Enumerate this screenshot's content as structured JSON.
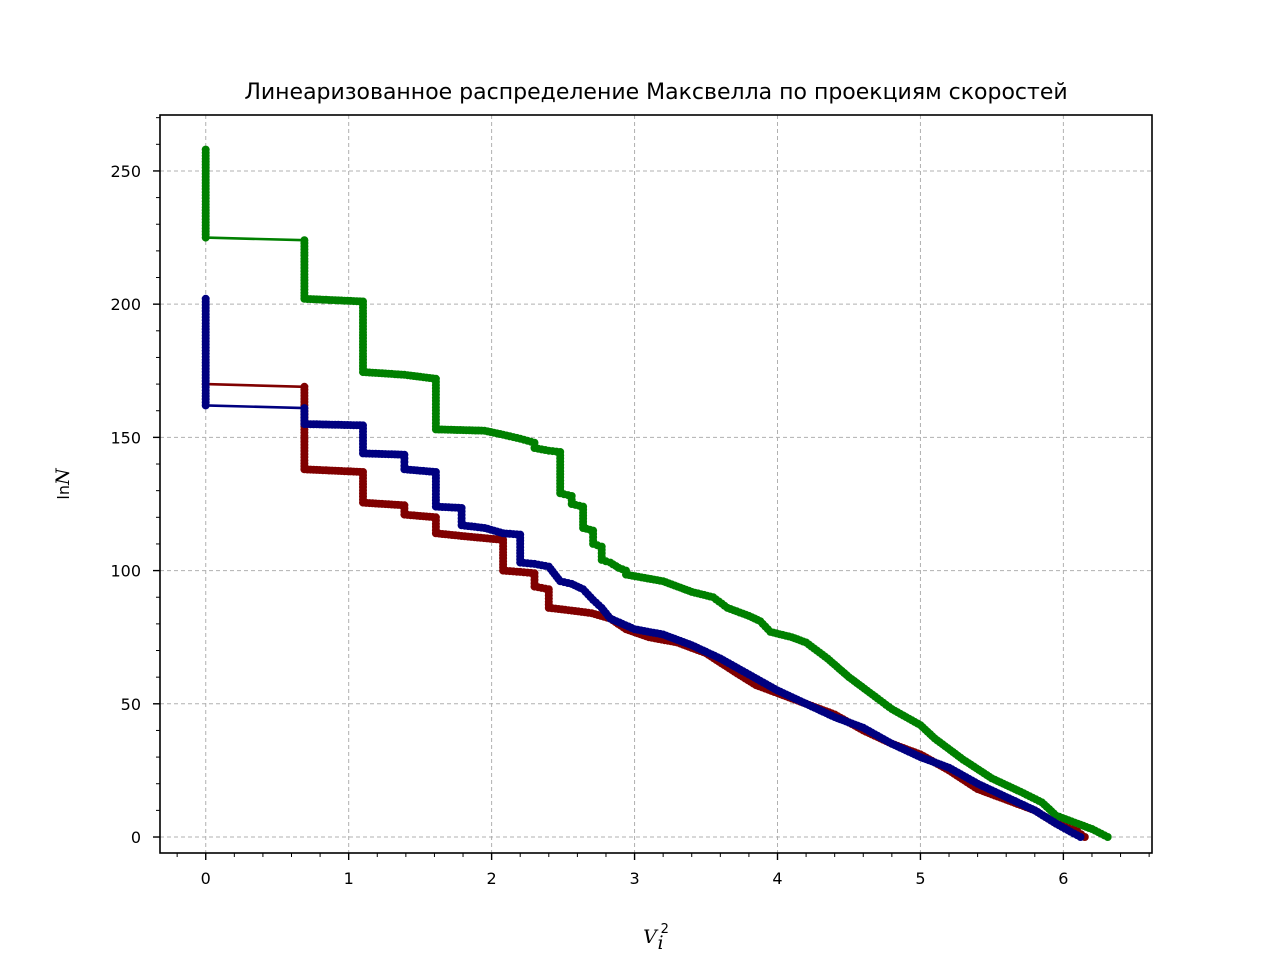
{
  "chart_data": {
    "type": "line",
    "title": "Линеаризованное распределение Максвелла по проекциям скоростей",
    "xlabel": {
      "base": "V",
      "sub": "i",
      "sup": "2"
    },
    "ylabel": {
      "prefix": "ln",
      "var": "N"
    },
    "xlim": [
      -0.32,
      6.62
    ],
    "ylim": [
      -6,
      271
    ],
    "x_ticks": [
      0,
      1,
      2,
      3,
      4,
      5,
      6
    ],
    "y_ticks": [
      0,
      50,
      100,
      150,
      200,
      250
    ],
    "grid": true,
    "legend": "none",
    "series": [
      {
        "color": "#008000",
        "points": [
          [
            0,
            258
          ],
          [
            0,
            225
          ],
          [
            0.69,
            224
          ],
          [
            0.69,
            202
          ],
          [
            1.1,
            201
          ],
          [
            1.1,
            174.5
          ],
          [
            1.39,
            173.5
          ],
          [
            1.61,
            172
          ],
          [
            1.61,
            153
          ],
          [
            1.95,
            152.5
          ],
          [
            2.08,
            151
          ],
          [
            2.2,
            149.5
          ],
          [
            2.3,
            148
          ],
          [
            2.3,
            146
          ],
          [
            2.4,
            145
          ],
          [
            2.48,
            144.5
          ],
          [
            2.48,
            129
          ],
          [
            2.56,
            128
          ],
          [
            2.56,
            125
          ],
          [
            2.64,
            124
          ],
          [
            2.64,
            116
          ],
          [
            2.71,
            115
          ],
          [
            2.71,
            110
          ],
          [
            2.77,
            109
          ],
          [
            2.77,
            104
          ],
          [
            2.83,
            103
          ],
          [
            2.89,
            101
          ],
          [
            2.94,
            100
          ],
          [
            2.94,
            98.5
          ],
          [
            3.2,
            96
          ],
          [
            3.3,
            94
          ],
          [
            3.4,
            92
          ],
          [
            3.55,
            90
          ],
          [
            3.65,
            86
          ],
          [
            3.8,
            83
          ],
          [
            3.88,
            81
          ],
          [
            3.95,
            77
          ],
          [
            4.1,
            75
          ],
          [
            4.2,
            73
          ],
          [
            4.35,
            67
          ],
          [
            4.5,
            60
          ],
          [
            4.7,
            52
          ],
          [
            4.8,
            48
          ],
          [
            5.0,
            42
          ],
          [
            5.1,
            37
          ],
          [
            5.3,
            29
          ],
          [
            5.5,
            22
          ],
          [
            5.7,
            17
          ],
          [
            5.85,
            13
          ],
          [
            5.95,
            8
          ],
          [
            6.1,
            5
          ],
          [
            6.2,
            3
          ],
          [
            6.31,
            0
          ]
        ]
      },
      {
        "color": "#800000",
        "points": [
          [
            0,
            170
          ],
          [
            0.69,
            169
          ],
          [
            0.69,
            138
          ],
          [
            1.1,
            137
          ],
          [
            1.1,
            125.5
          ],
          [
            1.39,
            124.5
          ],
          [
            1.39,
            121
          ],
          [
            1.61,
            120
          ],
          [
            1.61,
            114
          ],
          [
            1.79,
            113
          ],
          [
            2.08,
            111.5
          ],
          [
            2.08,
            100
          ],
          [
            2.2,
            99.5
          ],
          [
            2.3,
            99
          ],
          [
            2.3,
            94
          ],
          [
            2.4,
            93
          ],
          [
            2.4,
            86
          ],
          [
            2.56,
            85
          ],
          [
            2.7,
            84
          ],
          [
            2.83,
            82
          ],
          [
            2.94,
            78
          ],
          [
            3.1,
            75
          ],
          [
            3.3,
            73
          ],
          [
            3.5,
            69
          ],
          [
            3.7,
            62
          ],
          [
            3.85,
            57
          ],
          [
            4.0,
            54
          ],
          [
            4.2,
            50
          ],
          [
            4.4,
            46
          ],
          [
            4.6,
            40
          ],
          [
            4.8,
            35
          ],
          [
            5.0,
            31
          ],
          [
            5.2,
            25
          ],
          [
            5.4,
            18
          ],
          [
            5.6,
            14
          ],
          [
            5.8,
            10
          ],
          [
            5.95,
            5
          ],
          [
            6.1,
            2
          ],
          [
            6.15,
            0
          ]
        ]
      },
      {
        "color": "#000080",
        "points": [
          [
            0,
            202
          ],
          [
            0,
            162
          ],
          [
            0.69,
            161
          ],
          [
            0.69,
            155
          ],
          [
            1.1,
            154.5
          ],
          [
            1.1,
            144
          ],
          [
            1.39,
            143.5
          ],
          [
            1.39,
            138
          ],
          [
            1.61,
            137
          ],
          [
            1.61,
            124
          ],
          [
            1.79,
            123.5
          ],
          [
            1.79,
            117
          ],
          [
            1.95,
            116
          ],
          [
            2.08,
            114
          ],
          [
            2.2,
            113.5
          ],
          [
            2.2,
            103
          ],
          [
            2.3,
            102.5
          ],
          [
            2.4,
            101.5
          ],
          [
            2.48,
            96
          ],
          [
            2.56,
            95
          ],
          [
            2.64,
            93
          ],
          [
            2.71,
            89
          ],
          [
            2.77,
            86
          ],
          [
            2.83,
            82
          ],
          [
            3.0,
            78
          ],
          [
            3.2,
            76
          ],
          [
            3.4,
            72
          ],
          [
            3.6,
            67
          ],
          [
            3.8,
            61
          ],
          [
            4.0,
            55
          ],
          [
            4.2,
            50
          ],
          [
            4.4,
            45
          ],
          [
            4.6,
            41
          ],
          [
            4.8,
            35
          ],
          [
            5.0,
            30
          ],
          [
            5.2,
            26
          ],
          [
            5.4,
            20
          ],
          [
            5.6,
            15
          ],
          [
            5.8,
            10
          ],
          [
            5.95,
            5
          ],
          [
            6.05,
            2
          ],
          [
            6.12,
            0
          ]
        ]
      }
    ]
  }
}
